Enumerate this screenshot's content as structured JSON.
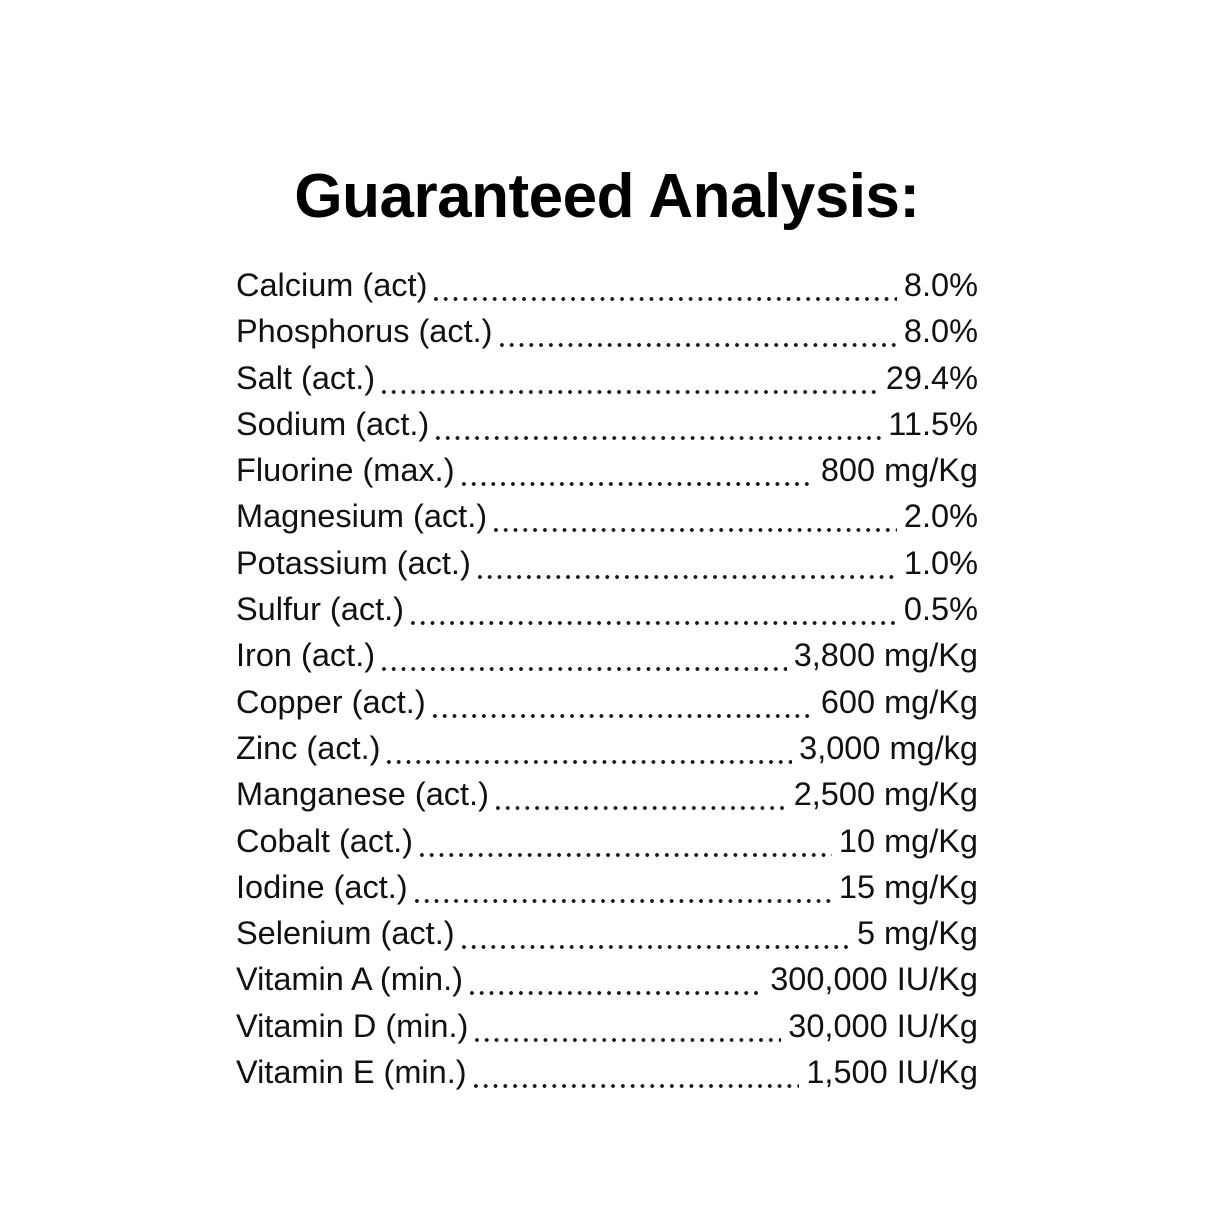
{
  "title": "Guaranteed Analysis:",
  "colors": {
    "background": "#ffffff",
    "text": "#111111",
    "title_text": "#000000"
  },
  "rows": [
    {
      "label": "Calcium (act)",
      "value": "8.0%"
    },
    {
      "label": "Phosphorus (act.)",
      "value": "8.0%"
    },
    {
      "label": "Salt (act.)",
      "value": "29.4%"
    },
    {
      "label": "Sodium (act.)",
      "value": "11.5%"
    },
    {
      "label": "Fluorine (max.)",
      "value": "800 mg/Kg"
    },
    {
      "label": "Magnesium (act.)",
      "value": "2.0%"
    },
    {
      "label": "Potassium (act.)",
      "value": "1.0%"
    },
    {
      "label": "Sulfur (act.)",
      "value": "0.5%"
    },
    {
      "label": "Iron (act.)",
      "value": "3,800 mg/Kg"
    },
    {
      "label": "Copper (act.)",
      "value": "600 mg/Kg"
    },
    {
      "label": "Zinc (act.)",
      "value": "3,000 mg/kg"
    },
    {
      "label": "Manganese (act.)",
      "value": "2,500 mg/Kg"
    },
    {
      "label": "Cobalt (act.)",
      "value": "10 mg/Kg"
    },
    {
      "label": "Iodine (act.)",
      "value": "15 mg/Kg"
    },
    {
      "label": "Selenium (act.)",
      "value": "5 mg/Kg"
    },
    {
      "label": "Vitamin A (min.)",
      "value": "300,000 IU/Kg"
    },
    {
      "label": "Vitamin D (min.)",
      "value": "30,000 IU/Kg"
    },
    {
      "label": "Vitamin E (min.)",
      "value": "1,500 IU/Kg"
    }
  ]
}
